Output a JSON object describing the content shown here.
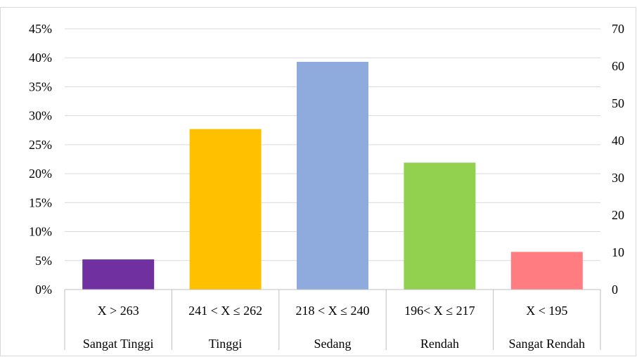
{
  "chart_data": {
    "type": "bar",
    "categories": [
      {
        "range": "X > 263",
        "label": "Sangat Tinggi"
      },
      {
        "range": "241 < X ≤ 262",
        "label": "Tinggi"
      },
      {
        "range": "218 < X ≤ 240",
        "label": "Sedang"
      },
      {
        "range": "196< X ≤ 217",
        "label": "Rendah"
      },
      {
        "range": "X < 195",
        "label": "Sangat Rendah"
      }
    ],
    "values": [
      0.052,
      0.277,
      0.393,
      0.219,
      0.065
    ],
    "colors": [
      "#7030a0",
      "#ffc000",
      "#8faadc",
      "#92d050",
      "#ff7c80"
    ],
    "ylim": [
      0,
      0.45
    ],
    "y_ticks": [
      "0%",
      "5%",
      "10%",
      "15%",
      "20%",
      "25%",
      "30%",
      "35%",
      "40%",
      "45%"
    ],
    "y2lim": [
      0,
      70
    ],
    "y2_ticks": [
      "0",
      "10",
      "20",
      "30",
      "40",
      "50",
      "60",
      "70"
    ],
    "grid": true,
    "title": "",
    "xlabel": "",
    "ylabel": ""
  }
}
